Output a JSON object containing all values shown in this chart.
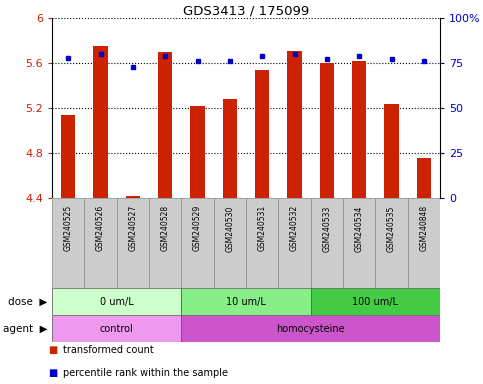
{
  "title": "GDS3413 / 175099",
  "samples": [
    "GSM240525",
    "GSM240526",
    "GSM240527",
    "GSM240528",
    "GSM240529",
    "GSM240530",
    "GSM240531",
    "GSM240532",
    "GSM240533",
    "GSM240534",
    "GSM240535",
    "GSM240848"
  ],
  "bar_values": [
    5.14,
    5.75,
    4.42,
    5.7,
    5.22,
    5.28,
    5.54,
    5.71,
    5.6,
    5.62,
    5.24,
    4.76
  ],
  "dot_values": [
    78,
    80,
    73,
    79,
    76,
    76,
    79,
    80,
    77,
    79,
    77,
    76
  ],
  "ylim_left": [
    4.4,
    6.0
  ],
  "ylim_right": [
    0,
    100
  ],
  "yticks_left": [
    4.4,
    4.8,
    5.2,
    5.6,
    6.0
  ],
  "yticks_right": [
    0,
    25,
    50,
    75,
    100
  ],
  "ytick_labels_left": [
    "4.4",
    "4.8",
    "5.2",
    "5.6",
    "6"
  ],
  "ytick_labels_right": [
    "0",
    "25",
    "50",
    "75",
    "100%"
  ],
  "bar_color": "#cc2200",
  "dot_color": "#0000cc",
  "bar_bottom": 4.4,
  "dose_groups": [
    {
      "label": "0 um/L",
      "start": 0,
      "end": 4,
      "color": "#ccffcc"
    },
    {
      "label": "10 um/L",
      "start": 4,
      "end": 8,
      "color": "#88ee88"
    },
    {
      "label": "100 um/L",
      "start": 8,
      "end": 12,
      "color": "#44cc44"
    }
  ],
  "agent_groups": [
    {
      "label": "control",
      "start": 0,
      "end": 4,
      "color": "#ee99ee"
    },
    {
      "label": "homocysteine",
      "start": 4,
      "end": 12,
      "color": "#cc55cc"
    }
  ],
  "legend_bar_label": "transformed count",
  "legend_dot_label": "percentile rank within the sample",
  "sample_area_color": "#cccccc",
  "grid_linestyle": "dotted"
}
